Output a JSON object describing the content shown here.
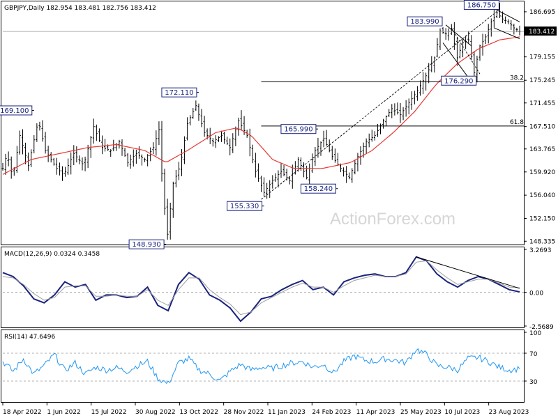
{
  "header": {
    "main": "GBPJPY,Daily  182.954 183.481 182.756 183.412",
    "macd": "MACD(12,26,9) 0.0324 0.3458",
    "rsi": "RSI(14) 47.6496"
  },
  "watermark": "ActionForex.com",
  "current_price": "183.412",
  "colors": {
    "bars": "#000000",
    "ma": "#e53935",
    "macd": "#1a237e",
    "signal": "#9e9e9e",
    "rsi": "#2196f3",
    "label_border": "#1a237e",
    "label_text": "#1a237e",
    "price_tag_bg": "#000000"
  },
  "chart_data": [
    {
      "type": "bar",
      "title": "GBPJPY,Daily",
      "ylim": [
        148.335,
        188.0
      ],
      "y_ticks": [
        "186.695",
        "183.412",
        "179.155",
        "175.245",
        "171.455",
        "167.510",
        "163.765",
        "159.920",
        "156.040",
        "152.150",
        "148.335"
      ],
      "x_ticks": [
        "18 Apr 2022",
        "1 Jun 2022",
        "15 Jul 2022",
        "30 Aug 2022",
        "13 Oct 2022",
        "28 Nov 2022",
        "11 Jan 2023",
        "24 Feb 2023",
        "11 Apr 2023",
        "25 May 2023",
        "10 Jul 2023",
        "23 Aug 2023"
      ],
      "ohlc_latest": {
        "open": 182.954,
        "high": 183.481,
        "low": 182.756,
        "close": 183.412
      },
      "swing_labels": [
        {
          "label": "169.100",
          "value": 169.1,
          "date": "Jun 2022"
        },
        {
          "label": "148.930",
          "value": 148.93,
          "date": "Aug 2022"
        },
        {
          "label": "172.110",
          "value": 172.11,
          "date": "Oct 2022"
        },
        {
          "label": "155.330",
          "value": 155.33,
          "date": "Jan 2023"
        },
        {
          "label": "165.990",
          "value": 165.99,
          "date": "Mar 2023"
        },
        {
          "label": "158.240",
          "value": 158.24,
          "date": "Mar 2023"
        },
        {
          "label": "183.990",
          "value": 183.99,
          "date": "Jun 2023"
        },
        {
          "label": "176.290",
          "value": 176.29,
          "date": "Jul 2023"
        },
        {
          "label": "186.750",
          "value": 186.75,
          "date": "Aug 2023"
        }
      ],
      "fib_levels": [
        {
          "label": "38.2",
          "value": 175.0
        },
        {
          "label": "61.8",
          "value": 167.6
        }
      ],
      "trend_path": [
        {
          "t": 0,
          "v": 160.5
        },
        {
          "t": 3,
          "v": 163.0
        },
        {
          "t": 7,
          "v": 159.0
        },
        {
          "t": 12,
          "v": 166.0
        },
        {
          "t": 18,
          "v": 161.0
        },
        {
          "t": 25,
          "v": 168.5
        },
        {
          "t": 30,
          "v": 163.5
        },
        {
          "t": 38,
          "v": 160.5
        },
        {
          "t": 43,
          "v": 159.5
        },
        {
          "t": 50,
          "v": 163.0
        },
        {
          "t": 57,
          "v": 161.0
        },
        {
          "t": 64,
          "v": 167.5
        },
        {
          "t": 70,
          "v": 164.0
        },
        {
          "t": 76,
          "v": 163.5
        },
        {
          "t": 82,
          "v": 165.0
        },
        {
          "t": 88,
          "v": 161.5
        },
        {
          "t": 94,
          "v": 163.0
        },
        {
          "t": 100,
          "v": 162.0
        },
        {
          "t": 106,
          "v": 164.0
        },
        {
          "t": 110,
          "v": 167.0
        },
        {
          "t": 113,
          "v": 156.0
        },
        {
          "t": 116,
          "v": 149.5
        },
        {
          "t": 120,
          "v": 158.0
        },
        {
          "t": 125,
          "v": 161.0
        },
        {
          "t": 130,
          "v": 168.0
        },
        {
          "t": 136,
          "v": 171.0
        },
        {
          "t": 142,
          "v": 166.5
        },
        {
          "t": 148,
          "v": 165.0
        },
        {
          "t": 154,
          "v": 166.0
        },
        {
          "t": 160,
          "v": 164.0
        },
        {
          "t": 166,
          "v": 168.5
        },
        {
          "t": 172,
          "v": 166.0
        },
        {
          "t": 178,
          "v": 160.0
        },
        {
          "t": 184,
          "v": 156.5
        },
        {
          "t": 190,
          "v": 158.5
        },
        {
          "t": 196,
          "v": 160.0
        },
        {
          "t": 202,
          "v": 158.5
        },
        {
          "t": 208,
          "v": 162.0
        },
        {
          "t": 214,
          "v": 159.0
        },
        {
          "t": 220,
          "v": 163.5
        },
        {
          "t": 226,
          "v": 165.5
        },
        {
          "t": 232,
          "v": 162.5
        },
        {
          "t": 238,
          "v": 160.5
        },
        {
          "t": 244,
          "v": 159.0
        },
        {
          "t": 250,
          "v": 162.5
        },
        {
          "t": 256,
          "v": 165.0
        },
        {
          "t": 262,
          "v": 166.0
        },
        {
          "t": 268,
          "v": 168.5
        },
        {
          "t": 274,
          "v": 170.5
        },
        {
          "t": 280,
          "v": 169.5
        },
        {
          "t": 286,
          "v": 171.5
        },
        {
          "t": 292,
          "v": 173.5
        },
        {
          "t": 298,
          "v": 176.0
        },
        {
          "t": 304,
          "v": 179.0
        },
        {
          "t": 308,
          "v": 183.5
        },
        {
          "t": 312,
          "v": 183.0
        },
        {
          "t": 316,
          "v": 183.8
        },
        {
          "t": 320,
          "v": 179.0
        },
        {
          "t": 324,
          "v": 181.5
        },
        {
          "t": 328,
          "v": 182.0
        },
        {
          "t": 332,
          "v": 176.5
        },
        {
          "t": 336,
          "v": 181.0
        },
        {
          "t": 340,
          "v": 182.5
        },
        {
          "t": 344,
          "v": 185.0
        },
        {
          "t": 348,
          "v": 186.5
        },
        {
          "t": 352,
          "v": 185.5
        },
        {
          "t": 356,
          "v": 185.0
        },
        {
          "t": 360,
          "v": 184.0
        },
        {
          "t": 364,
          "v": 183.4
        }
      ],
      "ma_path": [
        {
          "t": 0,
          "v": 159.5
        },
        {
          "t": 20,
          "v": 162.0
        },
        {
          "t": 40,
          "v": 163.0
        },
        {
          "t": 60,
          "v": 164.0
        },
        {
          "t": 80,
          "v": 164.5
        },
        {
          "t": 100,
          "v": 163.5
        },
        {
          "t": 115,
          "v": 161.5
        },
        {
          "t": 130,
          "v": 163.5
        },
        {
          "t": 150,
          "v": 166.5
        },
        {
          "t": 165,
          "v": 167.3
        },
        {
          "t": 175,
          "v": 166.0
        },
        {
          "t": 190,
          "v": 162.0
        },
        {
          "t": 205,
          "v": 160.5
        },
        {
          "t": 225,
          "v": 160.5
        },
        {
          "t": 245,
          "v": 161.5
        },
        {
          "t": 260,
          "v": 163.5
        },
        {
          "t": 275,
          "v": 166.5
        },
        {
          "t": 290,
          "v": 170.0
        },
        {
          "t": 305,
          "v": 174.5
        },
        {
          "t": 320,
          "v": 178.0
        },
        {
          "t": 335,
          "v": 180.5
        },
        {
          "t": 350,
          "v": 182.0
        },
        {
          "t": 364,
          "v": 182.5
        }
      ]
    },
    {
      "type": "line",
      "title": "MACD(12,26,9)",
      "ylim": [
        -2.5689,
        3.2693
      ],
      "y_ticks": [
        "3.2693",
        "0.00",
        "-2.5689"
      ],
      "series": [
        {
          "name": "MACD",
          "values": [
            1.5,
            1.2,
            0.5,
            -0.5,
            -0.8,
            -0.2,
            0.8,
            0.4,
            0.6,
            -0.6,
            -0.2,
            -0.2,
            -0.4,
            -0.3,
            0.4,
            -1.0,
            -1.4,
            0.6,
            1.5,
            1.0,
            -0.2,
            -0.6,
            -1.2,
            -2.2,
            -1.5,
            -0.5,
            -0.3,
            0.2,
            0.6,
            0.9,
            0.2,
            0.4,
            -0.2,
            0.8,
            1.1,
            1.3,
            1.4,
            1.2,
            1.2,
            1.5,
            2.7,
            2.4,
            1.4,
            0.8,
            0.4,
            0.9,
            1.2,
            1.0,
            0.6,
            0.2,
            0.03
          ]
        },
        {
          "name": "Signal",
          "values": [
            1.2,
            1.1,
            0.6,
            -0.1,
            -0.6,
            -0.4,
            0.4,
            0.5,
            0.5,
            -0.3,
            -0.3,
            -0.2,
            -0.3,
            -0.3,
            0.2,
            -0.6,
            -1.0,
            0.2,
            1.1,
            1.1,
            0.2,
            -0.4,
            -0.9,
            -1.7,
            -1.5,
            -0.8,
            -0.4,
            0.0,
            0.4,
            0.7,
            0.4,
            0.4,
            0.0,
            0.5,
            0.9,
            1.1,
            1.3,
            1.2,
            1.2,
            1.4,
            2.3,
            2.4,
            1.7,
            1.1,
            0.6,
            0.8,
            1.0,
            1.0,
            0.7,
            0.4,
            0.35
          ]
        }
      ]
    },
    {
      "type": "line",
      "title": "RSI(14)",
      "ylim": [
        0,
        100
      ],
      "y_ticks": [
        "100",
        "70",
        "30",
        "0"
      ],
      "series": [
        {
          "name": "RSI",
          "values": [
            58,
            44,
            62,
            40,
            52,
            68,
            45,
            56,
            40,
            50,
            46,
            49,
            44,
            52,
            58,
            34,
            26,
            56,
            62,
            46,
            40,
            30,
            44,
            54,
            46,
            50,
            48,
            52,
            56,
            58,
            50,
            54,
            42,
            58,
            66,
            60,
            58,
            62,
            60,
            56,
            76,
            68,
            52,
            50,
            46,
            62,
            64,
            58,
            50,
            46,
            47.6
          ]
        }
      ]
    }
  ]
}
